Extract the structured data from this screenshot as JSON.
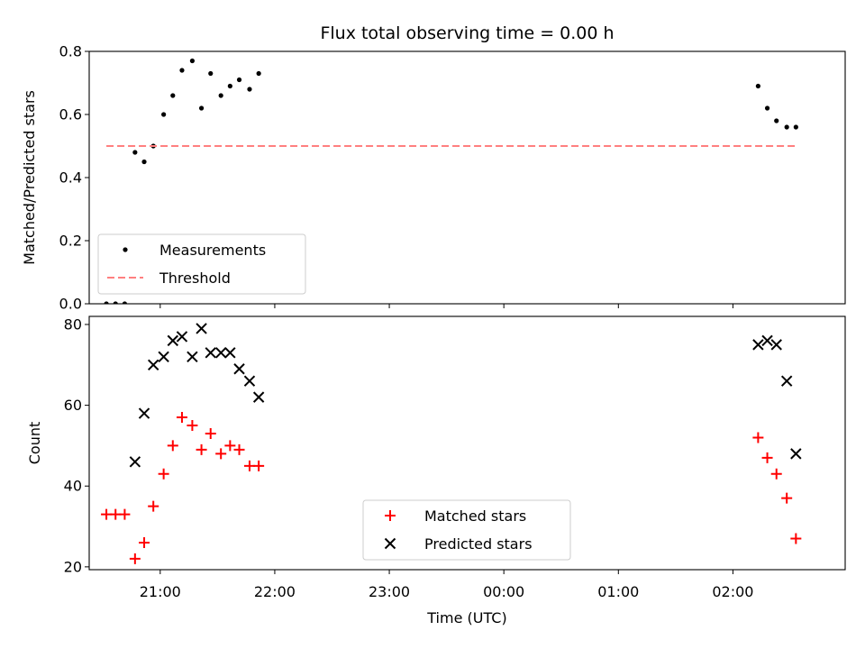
{
  "chart_data": {
    "title": "Flux total observing time = 0.00 h",
    "x_axis": {
      "label": "Time (UTC)",
      "unit": "hours after 21:00 UTC",
      "range": [
        -0.62,
        5.98
      ],
      "ticks": [
        {
          "value": 0,
          "label": "21:00"
        },
        {
          "value": 1,
          "label": "22:00"
        },
        {
          "value": 2,
          "label": "23:00"
        },
        {
          "value": 3,
          "label": "00:00"
        },
        {
          "value": 4,
          "label": "01:00"
        },
        {
          "value": 5,
          "label": "02:00"
        }
      ]
    },
    "panels": [
      {
        "type": "scatter",
        "ylabel": "Matched/Predicted stars",
        "ylim": [
          0,
          0.8
        ],
        "yticks": [
          "0.0",
          "0.2",
          "0.4",
          "0.6",
          "0.8"
        ],
        "yticks_values": [
          0,
          0.2,
          0.4,
          0.6,
          0.8
        ],
        "legend_location": "lower-left",
        "series": [
          {
            "name": "Measurements",
            "kind": "dot",
            "color": "#000000",
            "x": [
              -0.47,
              -0.39,
              -0.31,
              -0.22,
              -0.14,
              -0.06,
              0.03,
              0.11,
              0.19,
              0.28,
              0.36,
              0.44,
              0.53,
              0.61,
              0.69,
              0.78,
              0.86,
              5.22,
              5.3,
              5.38,
              5.47,
              5.55
            ],
            "y": [
              0.0,
              0.0,
              0.0,
              0.48,
              0.45,
              0.5,
              0.6,
              0.66,
              0.74,
              0.77,
              0.62,
              0.73,
              0.66,
              0.69,
              0.71,
              0.68,
              0.73,
              0.69,
              0.62,
              0.58,
              0.56,
              0.56
            ]
          },
          {
            "name": "Threshold",
            "kind": "dashed-line",
            "color": "#ff7f7f",
            "x": [
              -0.47,
              5.55
            ],
            "y": [
              0.5,
              0.5
            ]
          }
        ]
      },
      {
        "type": "scatter",
        "ylabel": "Count",
        "ylim": [
          19.3,
          82.0
        ],
        "yticks": [
          "20",
          "40",
          "60",
          "80"
        ],
        "yticks_values": [
          20,
          40,
          60,
          80
        ],
        "legend_location": "lower-center",
        "series": [
          {
            "name": "Matched stars",
            "kind": "plus",
            "color": "#ff0000",
            "x": [
              -0.47,
              -0.39,
              -0.31,
              -0.22,
              -0.14,
              -0.06,
              0.03,
              0.11,
              0.19,
              0.28,
              0.36,
              0.44,
              0.53,
              0.61,
              0.69,
              0.78,
              0.86,
              5.22,
              5.3,
              5.38,
              5.47,
              5.55
            ],
            "y": [
              33,
              33,
              33,
              22,
              26,
              35,
              43,
              50,
              57,
              55,
              49,
              53,
              48,
              50,
              49,
              45,
              45,
              52,
              47,
              43,
              37,
              27
            ]
          },
          {
            "name": "Predicted stars",
            "kind": "cross",
            "color": "#000000",
            "x": [
              -0.22,
              -0.14,
              -0.06,
              0.03,
              0.11,
              0.19,
              0.28,
              0.36,
              0.44,
              0.53,
              0.61,
              0.69,
              0.78,
              0.86,
              5.22,
              5.3,
              5.38,
              5.47,
              5.55
            ],
            "y": [
              46,
              58,
              70,
              72,
              76,
              77,
              72,
              79,
              73,
              73,
              73,
              69,
              66,
              62,
              75,
              76,
              75,
              66,
              48
            ]
          }
        ]
      }
    ]
  }
}
